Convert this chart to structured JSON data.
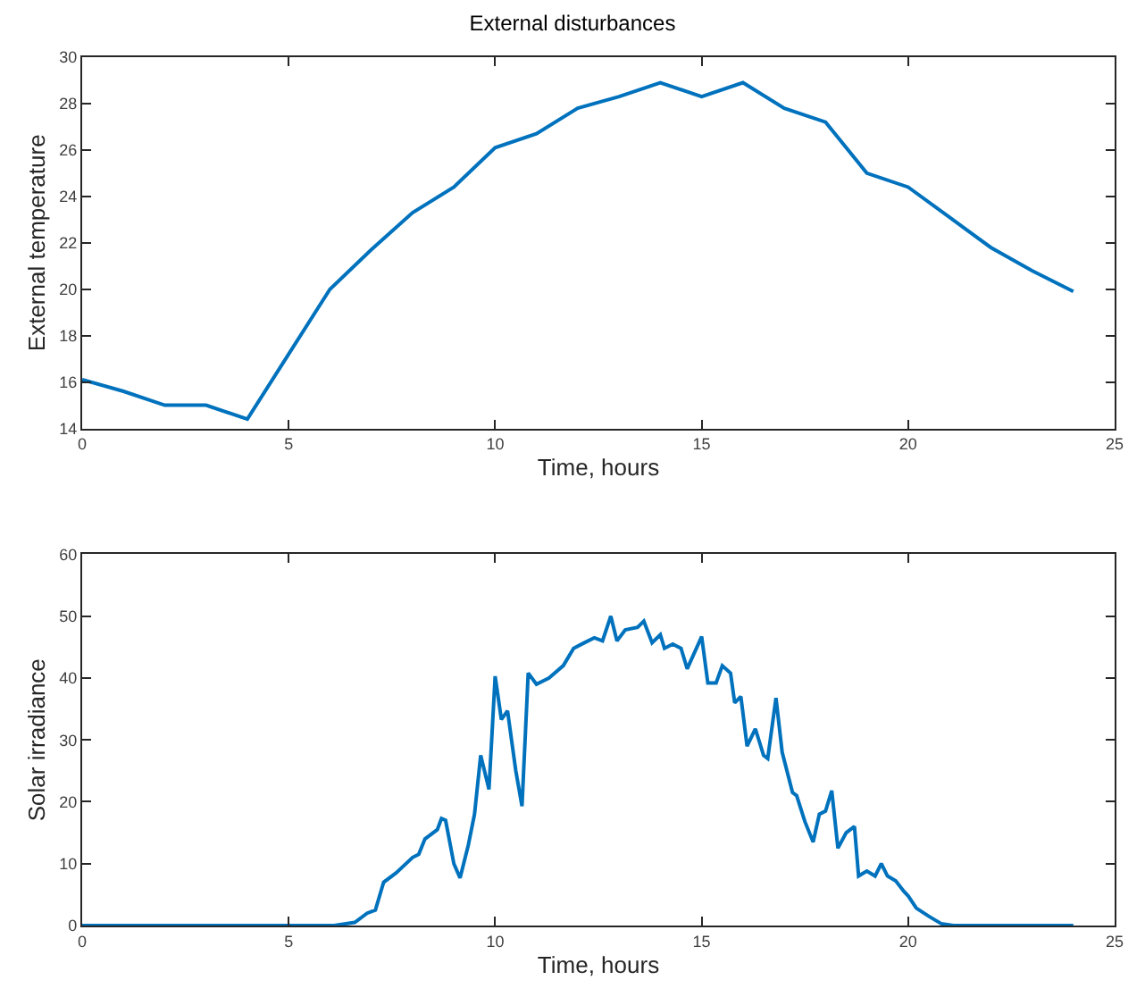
{
  "chart_data": [
    {
      "type": "line",
      "title": "External disturbances",
      "xlabel": "Time, hours",
      "ylabel": "External temperature",
      "xlim": [
        0,
        25
      ],
      "xticks": [
        0,
        5,
        10,
        15,
        20,
        25
      ],
      "ylim": [
        14,
        30
      ],
      "yticks": [
        14,
        16,
        18,
        20,
        22,
        24,
        26,
        28,
        30
      ],
      "marker": "none",
      "line_style": "solid",
      "x": [
        0,
        1,
        2,
        3,
        4,
        5,
        6,
        7,
        8,
        9,
        10,
        11,
        12,
        13,
        14,
        15,
        16,
        17,
        18,
        19,
        20,
        21,
        22,
        23,
        24
      ],
      "series": [
        {
          "color": "#0072bd",
          "values": [
            16.1,
            15.6,
            15.0,
            15.0,
            14.4,
            17.2,
            20.0,
            21.7,
            23.3,
            24.4,
            26.1,
            26.7,
            27.8,
            28.3,
            28.9,
            28.3,
            28.9,
            27.8,
            27.2,
            25.0,
            24.4,
            23.1,
            21.8,
            20.8,
            19.9
          ]
        }
      ]
    },
    {
      "type": "line",
      "xlabel": "Time, hours",
      "ylabel": "Solar irradiance",
      "xlim": [
        0,
        25
      ],
      "xticks": [
        0,
        5,
        10,
        15,
        20,
        25
      ],
      "ylim": [
        0,
        60
      ],
      "yticks": [
        0,
        10,
        20,
        30,
        40,
        50,
        60
      ],
      "marker": "none",
      "line_style": "solid",
      "x": [
        0,
        6.1,
        6.6,
        6.9,
        7.1,
        7.3,
        7.6,
        8.0,
        8.15,
        8.3,
        8.6,
        8.7,
        8.8,
        9.0,
        9.15,
        9.35,
        9.5,
        9.65,
        9.85,
        10.0,
        10.15,
        10.3,
        10.5,
        10.65,
        10.8,
        11.0,
        11.3,
        11.65,
        11.9,
        12.1,
        12.4,
        12.6,
        12.8,
        12.95,
        13.15,
        13.45,
        13.6,
        13.8,
        14.0,
        14.1,
        14.3,
        14.5,
        14.65,
        15.0,
        15.15,
        15.35,
        15.5,
        15.7,
        15.8,
        15.95,
        16.1,
        16.3,
        16.5,
        16.6,
        16.8,
        16.95,
        17.2,
        17.3,
        17.5,
        17.7,
        17.85,
        18.0,
        18.15,
        18.3,
        18.5,
        18.7,
        18.8,
        19.0,
        19.2,
        19.35,
        19.5,
        19.7,
        19.9,
        20.0,
        20.2,
        20.5,
        20.8,
        21.1,
        24
      ],
      "series": [
        {
          "color": "#0072bd",
          "values": [
            0,
            0,
            0.5,
            2,
            2.5,
            7,
            8.5,
            11,
            11.5,
            14,
            15.5,
            17.3,
            17,
            10,
            7.7,
            13,
            18,
            27.5,
            22,
            40.3,
            33.3,
            34.7,
            25,
            19.3,
            40.8,
            39,
            40,
            42,
            44.8,
            45.5,
            46.5,
            46,
            50,
            46,
            47.8,
            48.2,
            49.2,
            45.7,
            47,
            44.8,
            45.5,
            44.8,
            41.5,
            46.7,
            39.2,
            39.2,
            42,
            40.8,
            36,
            37,
            29,
            31.8,
            27.5,
            27,
            36.8,
            28,
            21.5,
            21,
            16.8,
            13.5,
            18,
            18.5,
            21.8,
            12.5,
            15,
            16,
            8,
            8.8,
            8,
            10,
            8,
            7.2,
            5.5,
            4.8,
            2.8,
            1.5,
            0.3,
            0,
            0
          ]
        }
      ]
    }
  ]
}
